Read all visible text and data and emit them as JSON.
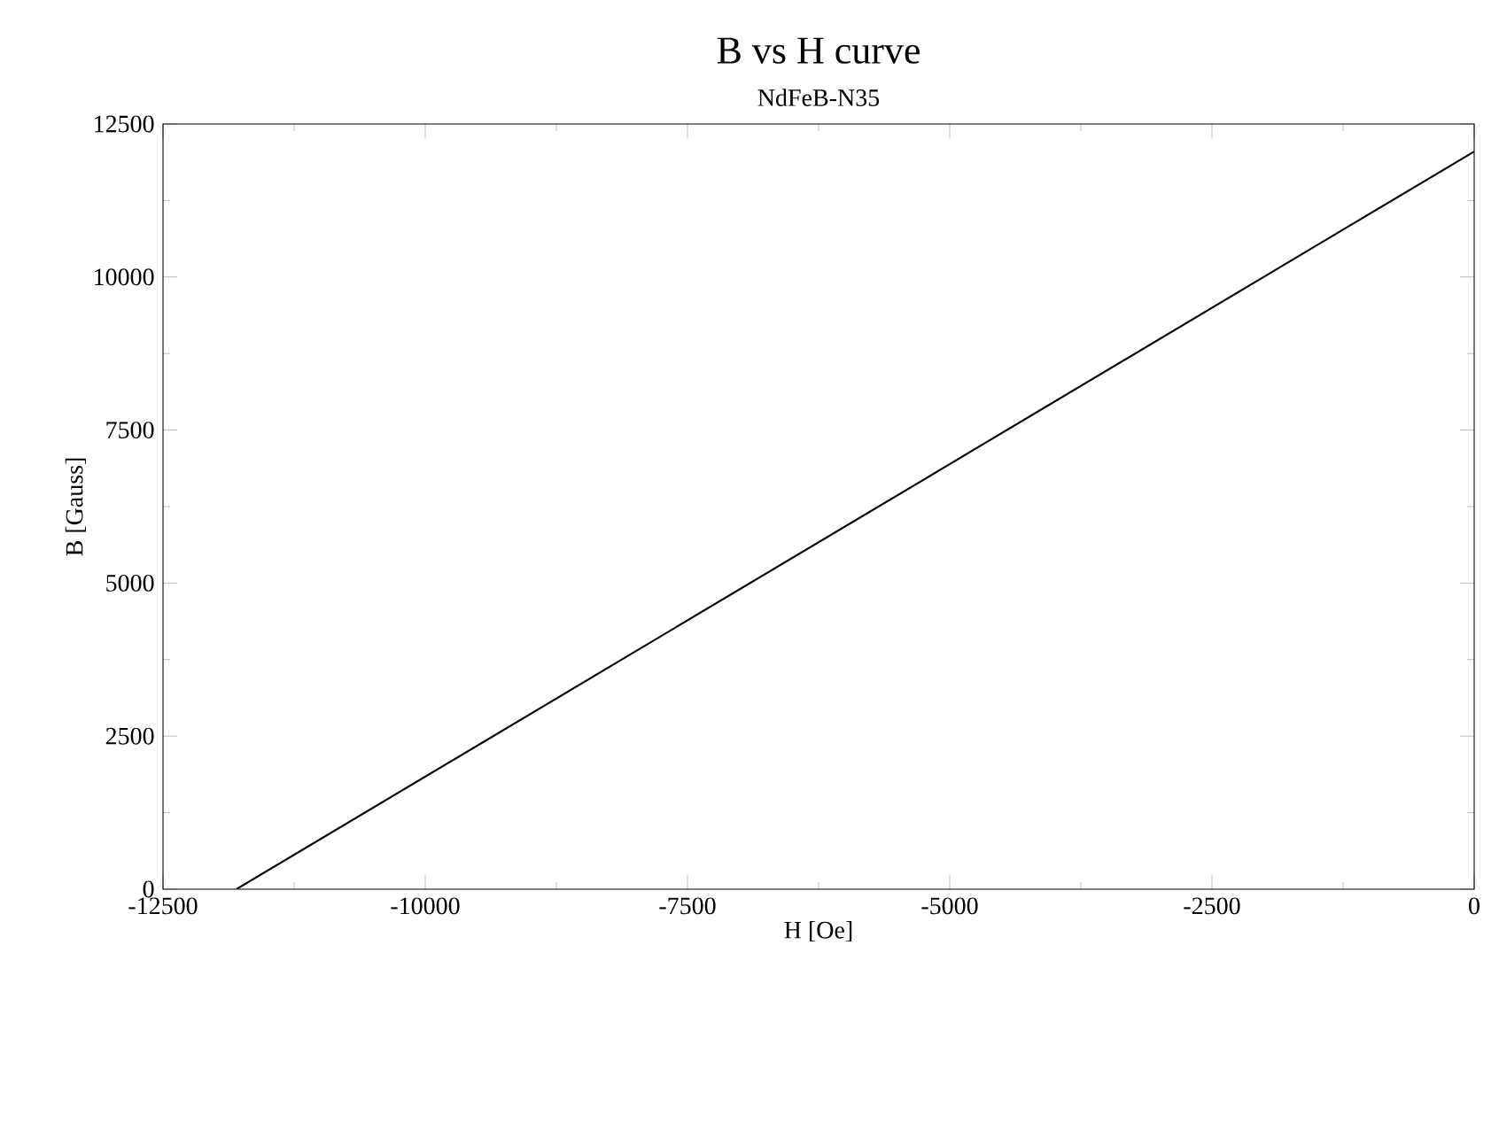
{
  "chart_data": {
    "type": "line",
    "title": "B vs H curve",
    "subtitle": "NdFeB-N35",
    "xlabel": "H [Oe]",
    "ylabel": "B [Gauss]",
    "x": [
      -11800,
      0
    ],
    "series": [
      {
        "color": "#000000",
        "values": [
          0,
          12050
        ]
      }
    ],
    "xlim": [
      -12500,
      0
    ],
    "ylim": [
      0,
      12500
    ],
    "xticks": [
      -12500,
      -10000,
      -7500,
      -5000,
      -2500,
      0
    ],
    "yticks": [
      0,
      2500,
      5000,
      7500,
      10000,
      12500
    ]
  }
}
